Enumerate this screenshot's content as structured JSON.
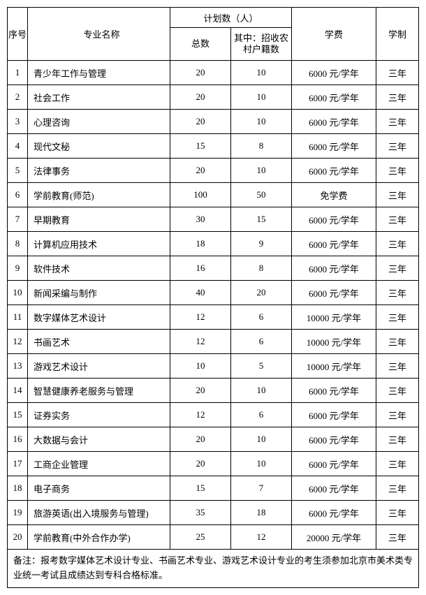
{
  "header": {
    "idx": "序号",
    "name": "专业名称",
    "plan": "计划数（人）",
    "total": "总数",
    "rural": "其中：招收农村户籍数",
    "fee": "学费",
    "dur": "学制"
  },
  "rows": [
    {
      "idx": "1",
      "name": "青少年工作与管理",
      "total": "20",
      "rural": "10",
      "fee": "6000 元/学年",
      "dur": "三年"
    },
    {
      "idx": "2",
      "name": "社会工作",
      "total": "20",
      "rural": "10",
      "fee": "6000 元/学年",
      "dur": "三年"
    },
    {
      "idx": "3",
      "name": "心理咨询",
      "total": "20",
      "rural": "10",
      "fee": "6000 元/学年",
      "dur": "三年"
    },
    {
      "idx": "4",
      "name": "现代文秘",
      "total": "15",
      "rural": "8",
      "fee": "6000 元/学年",
      "dur": "三年"
    },
    {
      "idx": "5",
      "name": "法律事务",
      "total": "20",
      "rural": "10",
      "fee": "6000 元/学年",
      "dur": "三年"
    },
    {
      "idx": "6",
      "name": "学前教育(师范)",
      "total": "100",
      "rural": "50",
      "fee": "免学费",
      "dur": "三年"
    },
    {
      "idx": "7",
      "name": "早期教育",
      "total": "30",
      "rural": "15",
      "fee": "6000 元/学年",
      "dur": "三年"
    },
    {
      "idx": "8",
      "name": "计算机应用技术",
      "total": "18",
      "rural": "9",
      "fee": "6000 元/学年",
      "dur": "三年"
    },
    {
      "idx": "9",
      "name": "软件技术",
      "total": "16",
      "rural": "8",
      "fee": "6000 元/学年",
      "dur": "三年"
    },
    {
      "idx": "10",
      "name": "新闻采编与制作",
      "total": "40",
      "rural": "20",
      "fee": "6000 元/学年",
      "dur": "三年"
    },
    {
      "idx": "11",
      "name": "数字媒体艺术设计",
      "total": "12",
      "rural": "6",
      "fee": "10000 元/学年",
      "dur": "三年"
    },
    {
      "idx": "12",
      "name": "书画艺术",
      "total": "12",
      "rural": "6",
      "fee": "10000 元/学年",
      "dur": "三年"
    },
    {
      "idx": "13",
      "name": "游戏艺术设计",
      "total": "10",
      "rural": "5",
      "fee": "10000 元/学年",
      "dur": "三年"
    },
    {
      "idx": "14",
      "name": "智慧健康养老服务与管理",
      "total": "20",
      "rural": "10",
      "fee": "6000 元/学年",
      "dur": "三年"
    },
    {
      "idx": "15",
      "name": "证券实务",
      "total": "12",
      "rural": "6",
      "fee": "6000 元/学年",
      "dur": "三年"
    },
    {
      "idx": "16",
      "name": "大数据与会计",
      "total": "20",
      "rural": "10",
      "fee": "6000 元/学年",
      "dur": "三年"
    },
    {
      "idx": "17",
      "name": "工商企业管理",
      "total": "20",
      "rural": "10",
      "fee": "6000 元/学年",
      "dur": "三年"
    },
    {
      "idx": "18",
      "name": "电子商务",
      "total": "15",
      "rural": "7",
      "fee": "6000 元/学年",
      "dur": "三年"
    },
    {
      "idx": "19",
      "name": "旅游英语(出入境服务与管理)",
      "total": "35",
      "rural": "18",
      "fee": "6000 元/学年",
      "dur": "三年"
    },
    {
      "idx": "20",
      "name": "学前教育(中外合作办学)",
      "total": "25",
      "rural": "12",
      "fee": "20000 元/学年",
      "dur": "三年"
    }
  ],
  "note": "备注：报考数字媒体艺术设计专业、书画艺术专业、游戏艺术设计专业的考生须参加北京市美术类专业统一考试且成绩达到专科合格标准。"
}
